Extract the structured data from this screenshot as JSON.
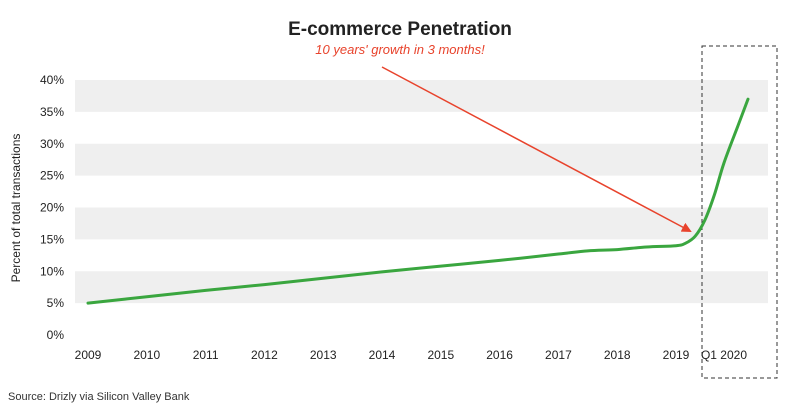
{
  "chart_data": {
    "type": "line",
    "title": "E-commerce Penetration",
    "annotation": "10 years' growth in 3 months!",
    "ylabel": "Percent of total transactions",
    "xlabel": "",
    "x_tick_labels": [
      "2009",
      "2010",
      "2011",
      "2012",
      "2013",
      "2014",
      "2015",
      "2016",
      "2017",
      "2018",
      "2019",
      "Q1 2020"
    ],
    "y_tick_labels": [
      "0%",
      "5%",
      "10%",
      "15%",
      "20%",
      "25%",
      "30%",
      "35%",
      "40%"
    ],
    "ylim": [
      0,
      40
    ],
    "grid": "alternating horizontal bands",
    "highlight_region": "Q1 2020",
    "series": [
      {
        "color": "#3aa63f",
        "points": [
          {
            "x": 2009.0,
            "y": 5.0
          },
          {
            "x": 2010.0,
            "y": 6.0
          },
          {
            "x": 2011.0,
            "y": 7.0
          },
          {
            "x": 2012.0,
            "y": 7.9
          },
          {
            "x": 2013.0,
            "y": 8.9
          },
          {
            "x": 2014.0,
            "y": 9.9
          },
          {
            "x": 2015.0,
            "y": 10.8
          },
          {
            "x": 2016.0,
            "y": 11.7
          },
          {
            "x": 2017.0,
            "y": 12.7
          },
          {
            "x": 2017.5,
            "y": 13.2
          },
          {
            "x": 2018.0,
            "y": 13.4
          },
          {
            "x": 2018.5,
            "y": 13.8
          },
          {
            "x": 2019.0,
            "y": 14.0
          },
          {
            "x": 2019.2,
            "y": 14.4
          },
          {
            "x": 2019.4,
            "y": 15.5
          },
          {
            "x": 2019.6,
            "y": 18.0
          },
          {
            "x": 2019.8,
            "y": 22.0
          },
          {
            "x": 2020.0,
            "y": 27.0
          },
          {
            "x": 2020.3,
            "y": 33.0
          },
          {
            "x": 2020.5,
            "y": 37.0
          }
        ]
      }
    ],
    "source": "Source: Drizly via Silicon Valley Bank"
  },
  "colors": {
    "line": "#3aa63f",
    "annotation": "#e8432c",
    "band": "#efefef"
  }
}
